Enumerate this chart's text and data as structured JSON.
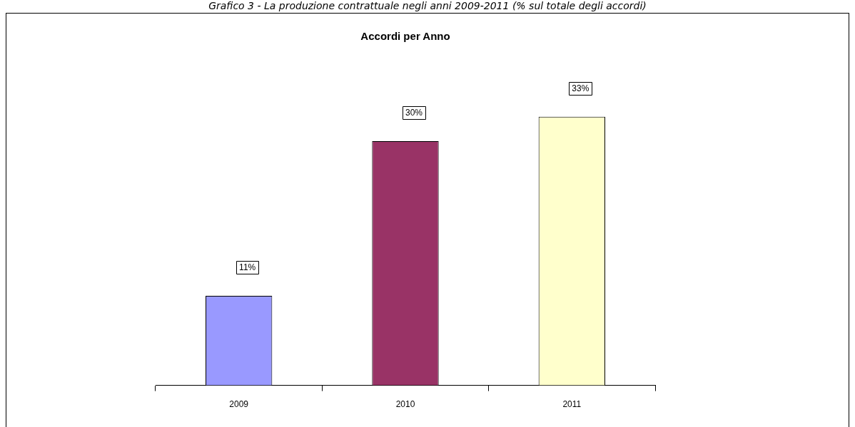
{
  "chart_data": {
    "type": "bar",
    "title": "Accordi per Anno",
    "annotations": [
      "Grafico 3 - La produzione contrattuale negli anni 2009-2011 (% sul totale degli accordi)"
    ],
    "categories": [
      "2009",
      "2010",
      "2011"
    ],
    "values": [
      11,
      30,
      33
    ],
    "colors": [
      "#9999ff",
      "#993366",
      "#ffffcc"
    ],
    "value_labels": [
      "11%",
      "30%",
      "33%"
    ]
  }
}
